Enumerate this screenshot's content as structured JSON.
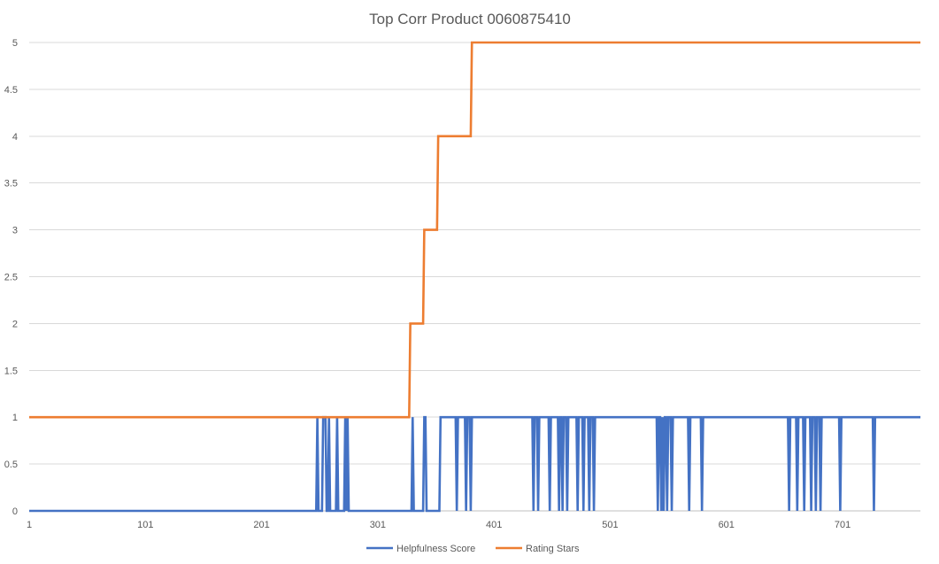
{
  "chart_data": {
    "type": "line",
    "title": "Top Corr Product 0060875410",
    "xlabel": "",
    "ylabel": "",
    "xlim": [
      1,
      768
    ],
    "ylim": [
      0,
      5
    ],
    "y_ticks": [
      "0",
      "0.5",
      "1",
      "1.5",
      "2",
      "2.5",
      "3",
      "3.5",
      "4",
      "4.5",
      "5"
    ],
    "x_ticks": [
      "1",
      "101",
      "201",
      "301",
      "401",
      "501",
      "601",
      "701"
    ],
    "x_tick_values": [
      1,
      101,
      201,
      301,
      401,
      501,
      601,
      701
    ],
    "grid": true,
    "legend_position": "bottom",
    "series": [
      {
        "name": "Helpfulness Score",
        "color": "#4472C4",
        "line_style": "jagged",
        "points": [
          [
            1,
            0
          ],
          [
            248,
            0
          ],
          [
            249,
            1
          ],
          [
            250,
            0
          ],
          [
            253,
            0
          ],
          [
            254,
            1
          ],
          [
            256,
            1
          ],
          [
            257,
            0
          ],
          [
            258,
            0
          ],
          [
            259,
            1
          ],
          [
            260,
            0
          ],
          [
            265,
            0
          ],
          [
            266,
            1
          ],
          [
            267,
            0
          ],
          [
            272,
            0
          ],
          [
            273,
            1
          ],
          [
            274,
            0
          ],
          [
            275,
            1
          ],
          [
            276,
            0
          ],
          [
            330,
            0
          ],
          [
            331,
            1
          ],
          [
            332,
            0
          ],
          [
            340,
            0
          ],
          [
            341,
            1
          ],
          [
            342,
            1
          ],
          [
            343,
            0
          ],
          [
            354,
            0
          ],
          [
            355,
            1
          ],
          [
            368,
            1
          ],
          [
            369,
            0
          ],
          [
            370,
            1
          ],
          [
            376,
            1
          ],
          [
            377,
            0
          ],
          [
            378,
            1
          ],
          [
            380,
            1
          ],
          [
            381,
            0
          ],
          [
            382,
            1
          ],
          [
            434,
            1
          ],
          [
            435,
            0
          ],
          [
            436,
            1
          ],
          [
            438,
            1
          ],
          [
            439,
            0
          ],
          [
            440,
            1
          ],
          [
            448,
            1
          ],
          [
            449,
            0
          ],
          [
            450,
            1
          ],
          [
            456,
            1
          ],
          [
            457,
            0
          ],
          [
            458,
            1
          ],
          [
            459,
            1
          ],
          [
            460,
            0
          ],
          [
            461,
            1
          ],
          [
            463,
            1
          ],
          [
            464,
            0
          ],
          [
            465,
            1
          ],
          [
            472,
            1
          ],
          [
            473,
            0
          ],
          [
            474,
            1
          ],
          [
            477,
            1
          ],
          [
            478,
            0
          ],
          [
            479,
            1
          ],
          [
            482,
            1
          ],
          [
            483,
            0
          ],
          [
            484,
            1
          ],
          [
            486,
            1
          ],
          [
            487,
            0
          ],
          [
            488,
            1
          ],
          [
            541,
            1
          ],
          [
            542,
            0
          ],
          [
            543,
            1
          ],
          [
            544,
            1
          ],
          [
            545,
            0
          ],
          [
            546,
            1
          ],
          [
            547,
            0
          ],
          [
            548,
            1
          ],
          [
            549,
            1
          ],
          [
            550,
            0
          ],
          [
            551,
            1
          ],
          [
            553,
            1
          ],
          [
            554,
            0
          ],
          [
            555,
            1
          ],
          [
            568,
            1
          ],
          [
            569,
            0
          ],
          [
            570,
            1
          ],
          [
            579,
            1
          ],
          [
            580,
            0
          ],
          [
            581,
            1
          ],
          [
            654,
            1
          ],
          [
            655,
            0
          ],
          [
            656,
            1
          ],
          [
            661,
            1
          ],
          [
            662,
            0
          ],
          [
            663,
            1
          ],
          [
            667,
            1
          ],
          [
            668,
            0
          ],
          [
            669,
            1
          ],
          [
            673,
            1
          ],
          [
            674,
            0
          ],
          [
            675,
            1
          ],
          [
            677,
            1
          ],
          [
            678,
            0
          ],
          [
            679,
            1
          ],
          [
            681,
            1
          ],
          [
            682,
            0
          ],
          [
            683,
            1
          ],
          [
            698,
            1
          ],
          [
            699,
            0
          ],
          [
            700,
            1
          ],
          [
            727,
            1
          ],
          [
            728,
            0
          ],
          [
            729,
            1
          ],
          [
            768,
            1
          ]
        ]
      },
      {
        "name": "Rating Stars",
        "color": "#ED7D31",
        "line_style": "step",
        "points": [
          [
            1,
            1
          ],
          [
            328,
            1
          ],
          [
            329,
            2
          ],
          [
            340,
            2
          ],
          [
            341,
            3
          ],
          [
            352,
            3
          ],
          [
            353,
            4
          ],
          [
            381,
            4
          ],
          [
            382,
            5
          ],
          [
            768,
            5
          ]
        ]
      }
    ]
  }
}
